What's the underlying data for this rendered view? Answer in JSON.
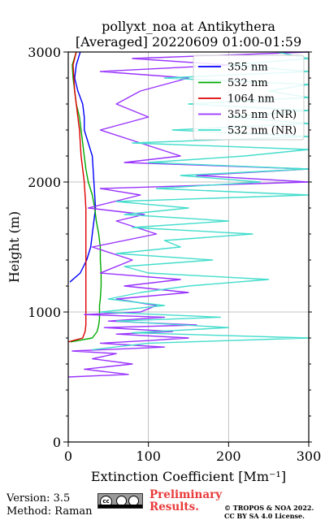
{
  "chart_data": {
    "type": "line",
    "title": "pollyxt_noa at Antikythera",
    "subtitle": "[Averaged] 20220609 01:00-01:59",
    "xlabel": "Extinction Coefficient [Mm⁻¹]",
    "ylabel": "Height (m)",
    "xlim": [
      0,
      300
    ],
    "ylim": [
      0,
      3000
    ],
    "xticks": [
      0,
      100,
      200,
      300
    ],
    "yticks": [
      0,
      1000,
      2000,
      3000
    ],
    "grid": true,
    "legend": "top-right",
    "series": [
      {
        "name": "355 nm",
        "color": "#0000ff",
        "y": [
          1230,
          1300,
          1400,
          1500,
          1600,
          1700,
          1800,
          1900,
          2000,
          2100,
          2200,
          2300,
          2400,
          2500,
          2600,
          2700,
          2800,
          2900,
          3000
        ],
        "x": [
          2,
          15,
          23,
          28,
          30,
          32,
          34,
          33,
          32,
          31,
          30,
          25,
          20,
          20,
          18,
          12,
          8,
          10,
          15
        ]
      },
      {
        "name": "532 nm",
        "color": "#00aa00",
        "y": [
          770,
          800,
          850,
          900,
          950,
          1000,
          1050,
          1100,
          1200,
          1300,
          1400,
          1500,
          1600,
          1700,
          1800,
          1900,
          2000,
          2100,
          2200,
          2300,
          2400,
          2500,
          2600,
          2700,
          2800,
          2900,
          3000
        ],
        "x": [
          3,
          30,
          36,
          38,
          39,
          39,
          39,
          40,
          41,
          41,
          40,
          40,
          38,
          35,
          33,
          30,
          25,
          22,
          20,
          18,
          16,
          14,
          10,
          8,
          6,
          5,
          10
        ]
      },
      {
        "name": "1064 nm",
        "color": "#dd0000",
        "y": [
          770,
          800,
          850,
          900,
          950,
          1000,
          1100,
          1200,
          1300,
          1400,
          1500,
          1600,
          1700,
          1800,
          1900,
          2000,
          2100,
          2200,
          2300,
          2400,
          2500,
          2600,
          2700,
          2800,
          2900,
          3000
        ],
        "x": [
          0,
          18,
          21,
          22,
          22,
          22,
          22,
          22,
          22,
          22,
          22,
          22,
          22,
          22,
          21,
          20,
          18,
          16,
          15,
          14,
          12,
          10,
          8,
          7,
          6,
          10
        ]
      },
      {
        "name": "355 nm (NR)",
        "color": "#9933ff",
        "y": [
          500,
          520,
          560,
          600,
          640,
          680,
          700,
          730,
          760,
          780,
          800,
          830,
          850,
          880,
          900,
          930,
          960,
          980,
          1000,
          1050,
          1100,
          1150,
          1200,
          1250,
          1300,
          1400,
          1500,
          1600,
          1700,
          1750,
          1800,
          1900,
          1950,
          2000,
          2050,
          2100,
          2150,
          2200,
          2300,
          2400,
          2500,
          2600,
          2700,
          2800,
          2850,
          2900,
          2950,
          3000
        ],
        "x": [
          0,
          75,
          20,
          80,
          30,
          60,
          5,
          120,
          40,
          100,
          150,
          60,
          130,
          45,
          160,
          50,
          120,
          20,
          90,
          110,
          60,
          150,
          70,
          140,
          40,
          80,
          30,
          110,
          60,
          95,
          25,
          90,
          40,
          300,
          160,
          300,
          70,
          140,
          90,
          40,
          100,
          60,
          90,
          150,
          40,
          200,
          80,
          300
        ]
      },
      {
        "name": "532 nm (NR)",
        "color": "#44ddcc",
        "y": [
          710,
          760,
          800,
          840,
          880,
          930,
          960,
          1000,
          1050,
          1100,
          1150,
          1200,
          1250,
          1300,
          1350,
          1400,
          1450,
          1500,
          1550,
          1600,
          1650,
          1700,
          1750,
          1800,
          1850,
          1900,
          1950,
          2000,
          2050,
          2100,
          2150,
          2200,
          2250,
          2300,
          2350,
          2400,
          2450,
          2500,
          2550,
          2600,
          2650,
          2700,
          2750,
          2800,
          2850,
          2900,
          2950,
          3000
        ],
        "x": [
          30,
          100,
          300,
          80,
          200,
          60,
          190,
          40,
          120,
          50,
          90,
          150,
          250,
          100,
          70,
          180,
          60,
          140,
          120,
          230,
          80,
          200,
          70,
          150,
          60,
          300,
          110,
          240,
          140,
          300,
          100,
          220,
          300,
          80,
          300,
          130,
          300,
          200,
          300,
          150,
          300,
          250,
          300,
          120,
          300,
          200,
          300,
          260
        ]
      }
    ]
  },
  "footer": {
    "version": "Version: 3.5",
    "method": "Method: Raman",
    "preliminary": "Preliminary Results.",
    "copyright": "© TROPOS & NOA 2022. CC BY SA 4.0 License."
  }
}
